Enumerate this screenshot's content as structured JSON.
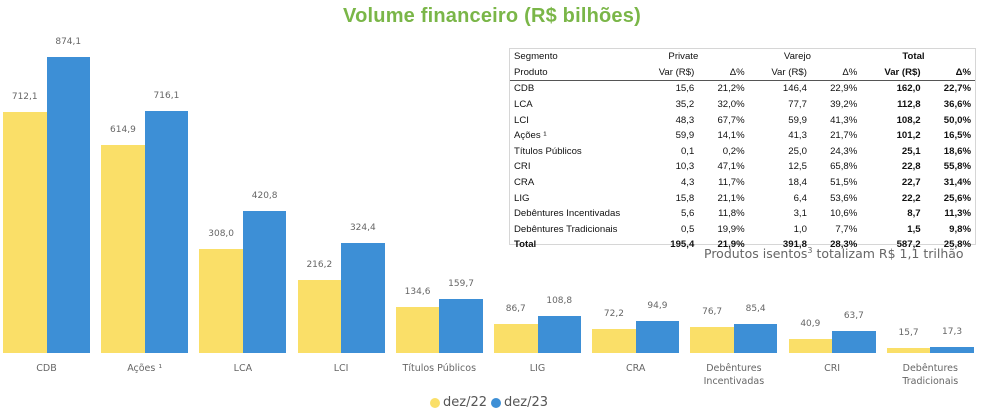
{
  "title": "Volume financeiro (R$ bilhões)",
  "colors": {
    "dez22": "#fadf68",
    "dez23": "#3d8fd6",
    "title": "#7ab648"
  },
  "legend": [
    {
      "label": "dez/22",
      "color": "#fadf68"
    },
    {
      "label": "dez/23",
      "color": "#3d8fd6"
    }
  ],
  "chart_data": {
    "type": "bar",
    "title": "Volume financeiro (R$ bilhões)",
    "xlabel": "",
    "ylabel": "",
    "grid": false,
    "legend_position": "bottom",
    "categories": [
      "CDB",
      "Ações ¹",
      "LCA",
      "LCI",
      "Títulos Públicos",
      "LIG",
      "CRA",
      "Debêntures Incentivadas",
      "CRI",
      "Debêntures Tradicionais"
    ],
    "series": [
      {
        "name": "dez/22",
        "values": [
          712.1,
          614.9,
          308.0,
          216.2,
          134.6,
          86.7,
          72.2,
          76.7,
          40.9,
          15.7
        ],
        "labels": [
          "712,1",
          "614,9",
          "308,0",
          "216,2",
          "134,6",
          "86,7",
          "72,2",
          "76,7",
          "40,9",
          "15,7"
        ]
      },
      {
        "name": "dez/23",
        "values": [
          874.1,
          716.1,
          420.8,
          324.4,
          159.7,
          108.8,
          94.9,
          85.4,
          63.7,
          17.3
        ],
        "labels": [
          "874,1",
          "716,1",
          "420,8",
          "324,4",
          "159,7",
          "108,8",
          "94,9",
          "85,4",
          "63,7",
          "17,3"
        ]
      }
    ],
    "ylim": [
      0,
      900
    ]
  },
  "table": {
    "header1": {
      "segment": "Segmento",
      "private": "Private",
      "varejo": "Varejo",
      "total": "Total"
    },
    "header2": {
      "product": "Produto",
      "var": "Var (R$)",
      "delta": "Δ%"
    },
    "rows": [
      {
        "produto": "CDB",
        "p_var": "15,6",
        "p_d": "21,2%",
        "v_var": "146,4",
        "v_d": "22,9%",
        "t_var": "162,0",
        "t_d": "22,7%"
      },
      {
        "produto": "LCA",
        "p_var": "35,2",
        "p_d": "32,0%",
        "v_var": "77,7",
        "v_d": "39,2%",
        "t_var": "112,8",
        "t_d": "36,6%"
      },
      {
        "produto": "LCI",
        "p_var": "48,3",
        "p_d": "67,7%",
        "v_var": "59,9",
        "v_d": "41,3%",
        "t_var": "108,2",
        "t_d": "50,0%"
      },
      {
        "produto": "Ações ¹",
        "p_var": "59,9",
        "p_d": "14,1%",
        "v_var": "41,3",
        "v_d": "21,7%",
        "t_var": "101,2",
        "t_d": "16,5%"
      },
      {
        "produto": "Títulos Públicos",
        "p_var": "0,1",
        "p_d": "0,2%",
        "v_var": "25,0",
        "v_d": "24,3%",
        "t_var": "25,1",
        "t_d": "18,6%"
      },
      {
        "produto": "CRI",
        "p_var": "10,3",
        "p_d": "47,1%",
        "v_var": "12,5",
        "v_d": "65,8%",
        "t_var": "22,8",
        "t_d": "55,8%"
      },
      {
        "produto": "CRA",
        "p_var": "4,3",
        "p_d": "11,7%",
        "v_var": "18,4",
        "v_d": "51,5%",
        "t_var": "22,7",
        "t_d": "31,4%"
      },
      {
        "produto": "LIG",
        "p_var": "15,8",
        "p_d": "21,1%",
        "v_var": "6,4",
        "v_d": "53,6%",
        "t_var": "22,2",
        "t_d": "25,6%"
      },
      {
        "produto": "Debêntures Incentivadas",
        "p_var": "5,6",
        "p_d": "11,8%",
        "v_var": "3,1",
        "v_d": "10,6%",
        "t_var": "8,7",
        "t_d": "11,3%"
      },
      {
        "produto": "Debêntures Tradicionais",
        "p_var": "0,5",
        "p_d": "19,9%",
        "v_var": "1,0",
        "v_d": "7,7%",
        "t_var": "1,5",
        "t_d": "9,8%"
      }
    ],
    "total": {
      "produto": "Total",
      "p_var": "195,4",
      "p_d": "21,9%",
      "v_var": "391,8",
      "v_d": "28,3%",
      "t_var": "587,2",
      "t_d": "25,8%"
    }
  },
  "note": {
    "text_before": "Produtos isentos",
    "sup": "3",
    "text_after": " totalizam R$ 1,1 trilhão"
  }
}
